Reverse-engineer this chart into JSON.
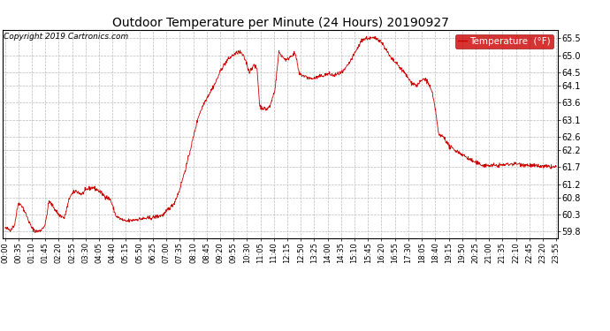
{
  "title": "Outdoor Temperature per Minute (24 Hours) 20190927",
  "copyright": "Copyright 2019 Cartronics.com",
  "legend_label": "Temperature  (°F)",
  "line_color": "#cc0000",
  "legend_bg": "#cc0000",
  "legend_text_color": "#ffffff",
  "background_color": "#ffffff",
  "grid_color": "#bbbbbb",
  "ylim": [
    59.6,
    65.75
  ],
  "yticks": [
    59.8,
    60.3,
    60.8,
    61.2,
    61.7,
    62.2,
    62.6,
    63.1,
    63.6,
    64.1,
    64.5,
    65.0,
    65.5
  ],
  "xtick_labels": [
    "00:00",
    "00:35",
    "01:10",
    "01:45",
    "02:20",
    "02:55",
    "03:30",
    "04:05",
    "04:40",
    "05:15",
    "05:50",
    "06:25",
    "07:00",
    "07:35",
    "08:10",
    "08:45",
    "09:20",
    "09:55",
    "10:30",
    "11:05",
    "11:40",
    "12:15",
    "12:50",
    "13:25",
    "14:00",
    "14:35",
    "15:10",
    "15:45",
    "16:20",
    "16:55",
    "17:30",
    "18:05",
    "18:40",
    "19:15",
    "19:50",
    "20:25",
    "21:00",
    "21:35",
    "22:10",
    "22:45",
    "23:20",
    "23:55"
  ],
  "keypoints": [
    [
      0,
      59.9
    ],
    [
      15,
      59.85
    ],
    [
      25,
      60.0
    ],
    [
      35,
      60.65
    ],
    [
      45,
      60.55
    ],
    [
      55,
      60.3
    ],
    [
      70,
      59.9
    ],
    [
      82,
      59.8
    ],
    [
      92,
      59.82
    ],
    [
      105,
      60.0
    ],
    [
      115,
      60.7
    ],
    [
      125,
      60.55
    ],
    [
      140,
      60.3
    ],
    [
      155,
      60.2
    ],
    [
      170,
      60.85
    ],
    [
      185,
      61.0
    ],
    [
      200,
      60.9
    ],
    [
      215,
      61.05
    ],
    [
      230,
      61.1
    ],
    [
      245,
      61.0
    ],
    [
      260,
      60.85
    ],
    [
      275,
      60.75
    ],
    [
      290,
      60.25
    ],
    [
      305,
      60.15
    ],
    [
      315,
      60.1
    ],
    [
      325,
      60.12
    ],
    [
      340,
      60.15
    ],
    [
      360,
      60.18
    ],
    [
      380,
      60.2
    ],
    [
      400,
      60.25
    ],
    [
      415,
      60.3
    ],
    [
      425,
      60.45
    ],
    [
      440,
      60.6
    ],
    [
      455,
      61.0
    ],
    [
      475,
      61.8
    ],
    [
      490,
      62.5
    ],
    [
      505,
      63.2
    ],
    [
      520,
      63.6
    ],
    [
      535,
      63.9
    ],
    [
      550,
      64.2
    ],
    [
      565,
      64.6
    ],
    [
      580,
      64.85
    ],
    [
      595,
      65.0
    ],
    [
      610,
      65.1
    ],
    [
      618,
      65.05
    ],
    [
      628,
      64.85
    ],
    [
      638,
      64.5
    ],
    [
      648,
      64.7
    ],
    [
      658,
      64.6
    ],
    [
      665,
      63.5
    ],
    [
      672,
      63.45
    ],
    [
      682,
      63.4
    ],
    [
      692,
      63.5
    ],
    [
      705,
      64.0
    ],
    [
      715,
      65.1
    ],
    [
      725,
      64.95
    ],
    [
      735,
      64.85
    ],
    [
      748,
      65.0
    ],
    [
      758,
      65.05
    ],
    [
      768,
      64.45
    ],
    [
      778,
      64.4
    ],
    [
      788,
      64.35
    ],
    [
      800,
      64.3
    ],
    [
      815,
      64.35
    ],
    [
      830,
      64.4
    ],
    [
      845,
      64.45
    ],
    [
      858,
      64.4
    ],
    [
      870,
      64.45
    ],
    [
      882,
      64.5
    ],
    [
      895,
      64.7
    ],
    [
      908,
      64.95
    ],
    [
      920,
      65.2
    ],
    [
      932,
      65.45
    ],
    [
      944,
      65.5
    ],
    [
      958,
      65.5
    ],
    [
      968,
      65.5
    ],
    [
      978,
      65.45
    ],
    [
      988,
      65.3
    ],
    [
      998,
      65.1
    ],
    [
      1008,
      64.9
    ],
    [
      1018,
      64.8
    ],
    [
      1030,
      64.65
    ],
    [
      1045,
      64.45
    ],
    [
      1060,
      64.2
    ],
    [
      1075,
      64.1
    ],
    [
      1090,
      64.28
    ],
    [
      1098,
      64.3
    ],
    [
      1106,
      64.15
    ],
    [
      1115,
      63.9
    ],
    [
      1125,
      63.3
    ],
    [
      1132,
      62.65
    ],
    [
      1145,
      62.6
    ],
    [
      1160,
      62.3
    ],
    [
      1175,
      62.2
    ],
    [
      1190,
      62.1
    ],
    [
      1210,
      61.95
    ],
    [
      1230,
      61.82
    ],
    [
      1250,
      61.75
    ],
    [
      1270,
      61.75
    ],
    [
      1290,
      61.75
    ],
    [
      1310,
      61.78
    ],
    [
      1330,
      61.8
    ],
    [
      1350,
      61.78
    ],
    [
      1370,
      61.75
    ],
    [
      1400,
      61.72
    ],
    [
      1439,
      61.7
    ]
  ]
}
